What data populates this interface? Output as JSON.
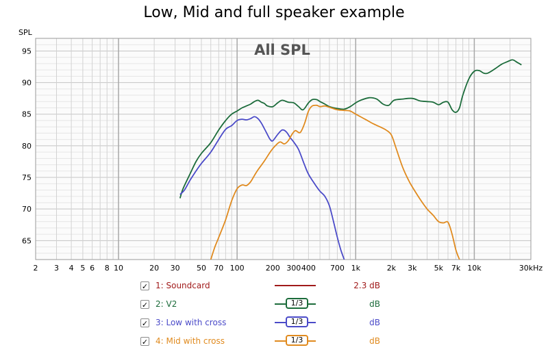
{
  "title": "Low, Mid and full speaker example",
  "chart_data": {
    "type": "line",
    "inner_title": "All SPL",
    "ylabel": "SPL",
    "x_scale": "log",
    "xlim": [
      2,
      30000
    ],
    "ylim": [
      62,
      97
    ],
    "grid": true,
    "y_ticks": [
      65,
      70,
      75,
      80,
      85,
      90,
      95
    ],
    "x_ticks": [
      {
        "v": 2,
        "label": "2"
      },
      {
        "v": 3,
        "label": "3"
      },
      {
        "v": 4,
        "label": "4"
      },
      {
        "v": 5,
        "label": "5"
      },
      {
        "v": 6,
        "label": "6"
      },
      {
        "v": 8,
        "label": "8"
      },
      {
        "v": 10,
        "label": "10"
      },
      {
        "v": 20,
        "label": "20"
      },
      {
        "v": 30,
        "label": "30"
      },
      {
        "v": 50,
        "label": "50"
      },
      {
        "v": 70,
        "label": "70"
      },
      {
        "v": 100,
        "label": "100"
      },
      {
        "v": 200,
        "label": "200"
      },
      {
        "v": 300,
        "label": "300"
      },
      {
        "v": 400,
        "label": "400"
      },
      {
        "v": 700,
        "label": "700"
      },
      {
        "v": 1000,
        "label": "1k"
      },
      {
        "v": 2000,
        "label": "2k"
      },
      {
        "v": 3000,
        "label": "3k"
      },
      {
        "v": 5000,
        "label": "5k"
      },
      {
        "v": 7000,
        "label": "7k"
      },
      {
        "v": 10000,
        "label": "10k"
      },
      {
        "v": 30000,
        "label": "30kHz"
      }
    ],
    "series": [
      {
        "name": "2: V2",
        "color": "#1b6b3a",
        "points": [
          [
            33,
            71.7
          ],
          [
            35,
            73.2
          ],
          [
            40,
            75.5
          ],
          [
            45,
            77.5
          ],
          [
            50,
            78.8
          ],
          [
            60,
            80.5
          ],
          [
            70,
            82.5
          ],
          [
            80,
            84
          ],
          [
            90,
            85
          ],
          [
            100,
            85.5
          ],
          [
            110,
            86
          ],
          [
            120,
            86.3
          ],
          [
            130,
            86.6
          ],
          [
            140,
            87
          ],
          [
            150,
            87.2
          ],
          [
            160,
            86.9
          ],
          [
            170,
            86.7
          ],
          [
            180,
            86.3
          ],
          [
            200,
            86.2
          ],
          [
            220,
            86.8
          ],
          [
            240,
            87.2
          ],
          [
            270,
            86.9
          ],
          [
            300,
            86.8
          ],
          [
            330,
            86.2
          ],
          [
            360,
            85.7
          ],
          [
            400,
            86.8
          ],
          [
            430,
            87.3
          ],
          [
            470,
            87.3
          ],
          [
            500,
            87
          ],
          [
            550,
            86.6
          ],
          [
            600,
            86.2
          ],
          [
            700,
            85.9
          ],
          [
            800,
            85.8
          ],
          [
            900,
            86.2
          ],
          [
            1000,
            86.8
          ],
          [
            1100,
            87.2
          ],
          [
            1300,
            87.6
          ],
          [
            1500,
            87.4
          ],
          [
            1700,
            86.6
          ],
          [
            1900,
            86.4
          ],
          [
            2100,
            87.2
          ],
          [
            2500,
            87.4
          ],
          [
            3000,
            87.5
          ],
          [
            3500,
            87.1
          ],
          [
            4000,
            87
          ],
          [
            4500,
            86.9
          ],
          [
            5000,
            86.5
          ],
          [
            5500,
            86.9
          ],
          [
            6000,
            86.9
          ],
          [
            6500,
            85.7
          ],
          [
            7000,
            85.3
          ],
          [
            7500,
            86
          ],
          [
            8000,
            88
          ],
          [
            9000,
            90.6
          ],
          [
            10000,
            91.8
          ],
          [
            11000,
            91.9
          ],
          [
            12000,
            91.5
          ],
          [
            13000,
            91.5
          ],
          [
            15000,
            92.2
          ],
          [
            17000,
            92.9
          ],
          [
            19000,
            93.3
          ],
          [
            21000,
            93.6
          ],
          [
            23000,
            93.2
          ],
          [
            25000,
            92.8
          ]
        ]
      },
      {
        "name": "3: Low with cross",
        "color": "#4a4ac8",
        "points": [
          [
            33,
            72.3
          ],
          [
            36,
            73
          ],
          [
            40,
            74.5
          ],
          [
            45,
            76
          ],
          [
            50,
            77.2
          ],
          [
            60,
            79
          ],
          [
            70,
            81
          ],
          [
            80,
            82.6
          ],
          [
            90,
            83.2
          ],
          [
            100,
            84
          ],
          [
            110,
            84.2
          ],
          [
            120,
            84.1
          ],
          [
            130,
            84.3
          ],
          [
            140,
            84.6
          ],
          [
            150,
            84.3
          ],
          [
            160,
            83.6
          ],
          [
            170,
            82.7
          ],
          [
            180,
            81.8
          ],
          [
            190,
            81
          ],
          [
            200,
            80.8
          ],
          [
            220,
            81.8
          ],
          [
            240,
            82.5
          ],
          [
            260,
            82.2
          ],
          [
            280,
            81.3
          ],
          [
            300,
            80.6
          ],
          [
            330,
            79.4
          ],
          [
            370,
            77
          ],
          [
            400,
            75.5
          ],
          [
            450,
            74
          ],
          [
            500,
            72.8
          ],
          [
            550,
            72
          ],
          [
            600,
            70.5
          ],
          [
            650,
            68
          ],
          [
            700,
            65.5
          ],
          [
            750,
            63.5
          ],
          [
            800,
            62
          ]
        ]
      },
      {
        "name": "4: Mid with cross",
        "color": "#e08a1e",
        "points": [
          [
            60,
            62
          ],
          [
            65,
            64
          ],
          [
            70,
            65.5
          ],
          [
            80,
            68.3
          ],
          [
            90,
            71.3
          ],
          [
            100,
            73.2
          ],
          [
            110,
            73.8
          ],
          [
            120,
            73.7
          ],
          [
            130,
            74.3
          ],
          [
            140,
            75.3
          ],
          [
            150,
            76.2
          ],
          [
            170,
            77.6
          ],
          [
            190,
            79
          ],
          [
            210,
            80
          ],
          [
            230,
            80.6
          ],
          [
            250,
            80.3
          ],
          [
            270,
            80.8
          ],
          [
            290,
            81.8
          ],
          [
            310,
            82.4
          ],
          [
            340,
            82.1
          ],
          [
            370,
            83.5
          ],
          [
            400,
            85.5
          ],
          [
            430,
            86.3
          ],
          [
            470,
            86.4
          ],
          [
            500,
            86.2
          ],
          [
            550,
            86.3
          ],
          [
            600,
            86.1
          ],
          [
            700,
            85.7
          ],
          [
            800,
            85.6
          ],
          [
            900,
            85.5
          ],
          [
            1000,
            85
          ],
          [
            1200,
            84.2
          ],
          [
            1400,
            83.5
          ],
          [
            1600,
            83
          ],
          [
            1800,
            82.5
          ],
          [
            2000,
            81.7
          ],
          [
            2200,
            79.5
          ],
          [
            2500,
            76.5
          ],
          [
            2800,
            74.5
          ],
          [
            3000,
            73.5
          ],
          [
            3500,
            71.5
          ],
          [
            4000,
            70
          ],
          [
            4500,
            69
          ],
          [
            5000,
            68
          ],
          [
            5500,
            67.8
          ],
          [
            6000,
            67.9
          ],
          [
            6500,
            66
          ],
          [
            7000,
            63.5
          ],
          [
            7500,
            62
          ]
        ]
      }
    ],
    "legend": [
      {
        "label": "1: Soundcard",
        "checked": true,
        "smoothing": "",
        "value": "2.3 dB",
        "color": "#a01a1a"
      },
      {
        "label": "2: V2",
        "checked": true,
        "smoothing": "1/3",
        "value": "dB",
        "color": "#1b6b3a"
      },
      {
        "label": "3: Low with cross",
        "checked": true,
        "smoothing": "1/3",
        "value": "dB",
        "color": "#4a4ac8"
      },
      {
        "label": "4: Mid with cross",
        "checked": true,
        "smoothing": "1/3",
        "value": "dB",
        "color": "#e08a1e"
      }
    ],
    "legend_placement": "bottom"
  }
}
